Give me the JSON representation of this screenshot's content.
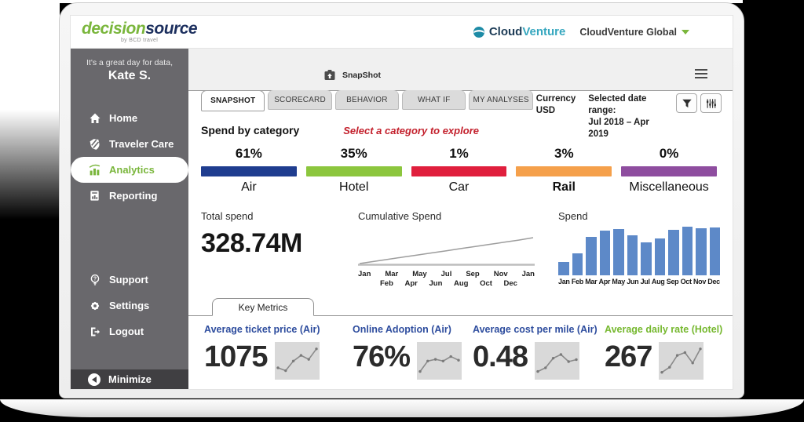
{
  "brand": {
    "name_part1": "decision",
    "name_part2": "source",
    "tagline": "by BCD travel"
  },
  "header": {
    "client_logo_part1": "Cloud",
    "client_logo_part2": "Venture",
    "account_selector": "CloudVenture Global"
  },
  "sidebar": {
    "greeting": "It's a great day for data,",
    "user": "Kate S.",
    "items": [
      {
        "label": "Home"
      },
      {
        "label": "Traveler Care"
      },
      {
        "label": "Analytics",
        "active": true
      },
      {
        "label": "Reporting"
      }
    ],
    "secondary_items": [
      {
        "label": "Support"
      },
      {
        "label": "Settings"
      },
      {
        "label": "Logout"
      }
    ],
    "minimize_label": "Minimize"
  },
  "toolbar": {
    "title": "SnapShot"
  },
  "tabs": [
    {
      "label": "SNAPSHOT",
      "active": true
    },
    {
      "label": "SCORECARD"
    },
    {
      "label": "BEHAVIOR"
    },
    {
      "label": "WHAT IF"
    },
    {
      "label": "MY ANALYSES"
    }
  ],
  "filters": {
    "currency_label": "Currency",
    "currency_value": "USD",
    "date_range_label": "Selected date range:",
    "date_range_value": "Jul 2018 – Apr 2019"
  },
  "spend_by_category": {
    "title": "Spend by category",
    "hint": "Select a category to explore",
    "categories": [
      {
        "label": "Air",
        "percent": "61%",
        "color": "#1f3d8f"
      },
      {
        "label": "Hotel",
        "percent": "35%",
        "color": "#8cc63e"
      },
      {
        "label": "Car",
        "percent": "1%",
        "color": "#e01f3d"
      },
      {
        "label": "Rail",
        "percent": "3%",
        "color": "#f5a04b",
        "emphasis": true
      },
      {
        "label": "Miscellaneous",
        "percent": "0%",
        "color": "#8e4d9f"
      }
    ]
  },
  "summary": {
    "total_spend_label": "Total spend",
    "total_spend_value": "328.74M",
    "cumulative_label": "Cumulative Spend",
    "spend_label": "Spend"
  },
  "chart_data": [
    {
      "type": "line",
      "title": "Cumulative Spend",
      "x": [
        "Jan",
        "Feb",
        "Mar",
        "Apr",
        "May",
        "Jun",
        "Jul",
        "Aug",
        "Sep",
        "Oct",
        "Nov",
        "Dec",
        "Jan"
      ],
      "x_ticks_row1": [
        "Jan",
        "Mar",
        "May",
        "Jul",
        "Sep",
        "Nov",
        "Jan"
      ],
      "x_ticks_row2": [
        "Feb",
        "Apr",
        "Jun",
        "Aug",
        "Oct",
        "Dec"
      ],
      "values": [
        3,
        11,
        19,
        27,
        35,
        43,
        51,
        59,
        67,
        75,
        83,
        91,
        100
      ],
      "note": "normalized 0-100; steady near-linear cumulative increase Jan to Jan",
      "line_color": "#9d9d9d",
      "axis_color": "#bdbdbd",
      "grid": false,
      "legend": false
    },
    {
      "type": "bar",
      "title": "Spend",
      "categories": [
        "Jan",
        "Feb",
        "Mar",
        "Apr",
        "May",
        "Jun",
        "Jul",
        "Aug",
        "Sep",
        "Oct",
        "Nov",
        "Dec"
      ],
      "values": [
        27,
        45,
        79,
        92,
        95,
        82,
        68,
        76,
        93,
        100,
        96,
        98
      ],
      "color": "#5d89c8",
      "note": "normalized monthly spend, Oct = max = 100",
      "grid": false,
      "legend": false
    }
  ],
  "key_metrics": {
    "tab_label": "Key Metrics",
    "metrics": [
      {
        "title": "Average ticket price (Air)",
        "value": "1075",
        "title_color": "#2e4d9e",
        "trend": [
          28,
          18,
          52,
          72,
          58,
          95
        ]
      },
      {
        "title": "Online Adoption (Air)",
        "value": "76%",
        "title_color": "#2e4d9e",
        "trend": [
          15,
          52,
          58,
          52,
          68,
          55
        ]
      },
      {
        "title": "Average cost per mile (Air)",
        "value": "0.48",
        "title_color": "#2e4d9e",
        "trend": [
          15,
          28,
          62,
          75,
          50,
          57
        ]
      },
      {
        "title": "Average daily rate (Hotel)",
        "value": "267",
        "title_color": "#76b82f",
        "trend": [
          12,
          30,
          72,
          82,
          45,
          95
        ]
      }
    ],
    "spark_line_color": "#8a8a8a",
    "spark_bg": "#d9d9d9"
  }
}
